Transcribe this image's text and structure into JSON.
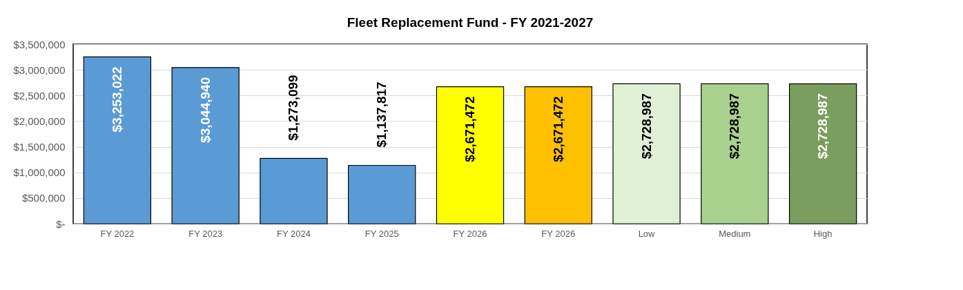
{
  "chart_data": {
    "type": "bar",
    "title": "Fleet Replacement Fund - FY 2021-2027",
    "categories": [
      "FY 2022",
      "FY 2023",
      "FY 2024",
      "FY 2025",
      "FY 2026",
      "FY 2026",
      "Low",
      "Medium",
      "High"
    ],
    "values": [
      3253022,
      3044940,
      1273099,
      1137817,
      2671472,
      2671472,
      2728987,
      2728987,
      2728987
    ],
    "colors": [
      "#5b9bd5",
      "#5b9bd5",
      "#5b9bd5",
      "#5b9bd5",
      "#ffff00",
      "#ffc000",
      "#dff0d5",
      "#a9d18e",
      "#7a9e5e"
    ],
    "value_labels": [
      "$3,253,022",
      "$3,044,940",
      "$1,273,099",
      "$1,137,817",
      "$2,671,472",
      "$2,671,472",
      "$2,728,987",
      "$2,728,987",
      "$2,728,987"
    ],
    "ylim": [
      0,
      3500000
    ],
    "yticks": [
      {
        "value": 0,
        "label": "$-"
      },
      {
        "value": 500000,
        "label": "$500,000"
      },
      {
        "value": 1000000,
        "label": "$1,000,000"
      },
      {
        "value": 1500000,
        "label": "$1,500,000"
      },
      {
        "value": 2000000,
        "label": "$2,000,000"
      },
      {
        "value": 2500000,
        "label": "$2,500,000"
      },
      {
        "value": 3000000,
        "label": "$3,000,000"
      },
      {
        "value": 3500000,
        "label": "$3,500,000"
      }
    ],
    "grid": "y"
  }
}
